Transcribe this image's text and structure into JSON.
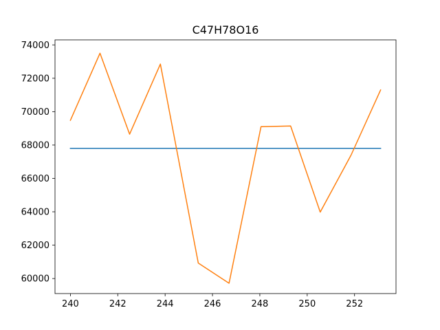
{
  "chart_data": {
    "type": "line",
    "title": "C47H78O16",
    "xlabel": "",
    "ylabel": "",
    "xlim": [
      239.35,
      253.75
    ],
    "ylim": [
      59100,
      74300
    ],
    "x_ticks": [
      240,
      242,
      244,
      246,
      248,
      250,
      252
    ],
    "y_ticks": [
      60000,
      62000,
      64000,
      66000,
      68000,
      70000,
      72000,
      74000
    ],
    "grid": false,
    "legend": "none",
    "series": [
      {
        "color": "#1f77b4",
        "x": [
          240.0,
          253.1
        ],
        "y": [
          67800,
          67800
        ]
      },
      {
        "color": "#ff7f0e",
        "x": [
          240.0,
          241.25,
          242.5,
          243.8,
          245.4,
          246.7,
          248.05,
          249.3,
          250.55,
          251.85,
          253.1
        ],
        "y": [
          69480,
          73500,
          68650,
          72850,
          60930,
          59720,
          69100,
          69140,
          63980,
          67390,
          71300
        ]
      }
    ]
  }
}
